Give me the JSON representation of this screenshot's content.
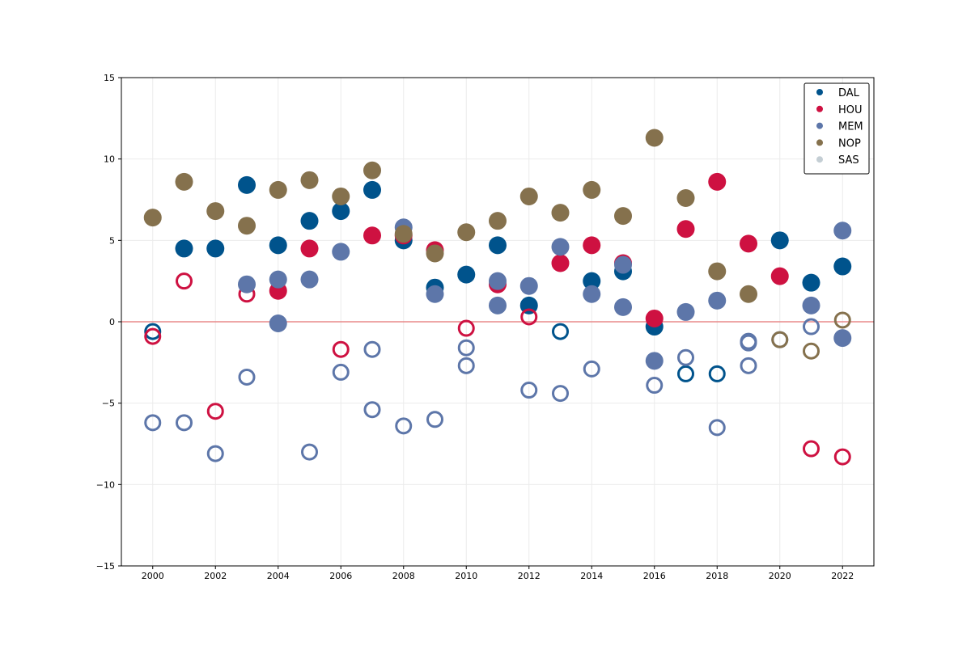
{
  "chart_data": {
    "type": "scatter",
    "title": "",
    "xlabel": "",
    "ylabel": "",
    "xlim": [
      1999,
      2023
    ],
    "ylim": [
      -15,
      15
    ],
    "xticks": [
      2000,
      2002,
      2004,
      2006,
      2008,
      2010,
      2012,
      2014,
      2016,
      2018,
      2020,
      2022
    ],
    "yticks": [
      -15,
      -10,
      -5,
      0,
      5,
      10,
      15
    ],
    "ytick_labels": [
      "−15",
      "−10",
      "−5",
      "0",
      "5",
      "10",
      "15"
    ],
    "grid": true,
    "reference_line": {
      "y": 0,
      "color": "#e88a8a"
    },
    "legend_position": "top-right",
    "marker_styles": {
      "filled": "solid circle",
      "hollow": "open ring"
    },
    "series": [
      {
        "name": "DAL",
        "color": "#00538C",
        "filled": [
          [
            2001,
            4.5
          ],
          [
            2002,
            4.5
          ],
          [
            2003,
            8.4
          ],
          [
            2004,
            4.7
          ],
          [
            2005,
            6.2
          ],
          [
            2006,
            6.8
          ],
          [
            2007,
            8.1
          ],
          [
            2008,
            5.0
          ],
          [
            2009,
            2.1
          ],
          [
            2010,
            2.9
          ],
          [
            2011,
            4.7
          ],
          [
            2012,
            1.0
          ],
          [
            2014,
            2.5
          ],
          [
            2015,
            3.1
          ],
          [
            2016,
            -0.3
          ],
          [
            2020,
            5.0
          ],
          [
            2021,
            2.4
          ],
          [
            2022,
            3.4
          ]
        ],
        "hollow": [
          [
            2000,
            -0.6
          ],
          [
            2013,
            -0.6
          ],
          [
            2017,
            -3.2
          ],
          [
            2018,
            -3.2
          ]
        ]
      },
      {
        "name": "HOU",
        "color": "#CE1141",
        "filled": [
          [
            2004,
            1.9
          ],
          [
            2005,
            4.5
          ],
          [
            2007,
            5.3
          ],
          [
            2008,
            5.3
          ],
          [
            2009,
            4.4
          ],
          [
            2011,
            2.3
          ],
          [
            2013,
            3.6
          ],
          [
            2014,
            4.7
          ],
          [
            2015,
            3.6
          ],
          [
            2016,
            0.2
          ],
          [
            2017,
            5.7
          ],
          [
            2018,
            8.6
          ],
          [
            2019,
            4.8
          ],
          [
            2020,
            2.8
          ]
        ],
        "hollow": [
          [
            2000,
            -0.9
          ],
          [
            2001,
            2.5
          ],
          [
            2002,
            -5.5
          ],
          [
            2003,
            1.7
          ],
          [
            2006,
            -1.7
          ],
          [
            2010,
            -0.4
          ],
          [
            2012,
            0.3
          ],
          [
            2021,
            -7.8
          ],
          [
            2022,
            -8.3
          ]
        ]
      },
      {
        "name": "MEM",
        "color": "#5D76A9",
        "filled": [
          [
            2003,
            2.3
          ],
          [
            2004,
            2.6
          ],
          [
            2004,
            -0.1
          ],
          [
            2005,
            2.6
          ],
          [
            2006,
            4.3
          ],
          [
            2008,
            5.8
          ],
          [
            2009,
            1.7
          ],
          [
            2011,
            2.5
          ],
          [
            2011,
            1.0
          ],
          [
            2012,
            2.2
          ],
          [
            2013,
            4.6
          ],
          [
            2014,
            1.7
          ],
          [
            2015,
            3.5
          ],
          [
            2015,
            0.9
          ],
          [
            2016,
            -2.4
          ],
          [
            2017,
            0.6
          ],
          [
            2018,
            1.3
          ],
          [
            2021,
            1.0
          ],
          [
            2022,
            5.6
          ],
          [
            2022,
            -1.0
          ]
        ],
        "hollow": [
          [
            2000,
            -6.2
          ],
          [
            2001,
            -6.2
          ],
          [
            2002,
            -8.1
          ],
          [
            2003,
            -3.4
          ],
          [
            2005,
            -8.0
          ],
          [
            2006,
            -3.1
          ],
          [
            2007,
            -1.7
          ],
          [
            2007,
            -5.4
          ],
          [
            2008,
            -6.4
          ],
          [
            2009,
            -6.0
          ],
          [
            2010,
            -1.6
          ],
          [
            2010,
            -2.7
          ],
          [
            2012,
            -4.2
          ],
          [
            2013,
            -4.4
          ],
          [
            2014,
            -2.9
          ],
          [
            2016,
            -3.9
          ],
          [
            2017,
            -2.2
          ],
          [
            2018,
            -6.5
          ],
          [
            2019,
            -1.2
          ],
          [
            2019,
            -1.3
          ],
          [
            2019,
            -2.7
          ],
          [
            2020,
            -1.1
          ],
          [
            2021,
            -0.3
          ]
        ]
      },
      {
        "name": "NOP",
        "color": "#85714D",
        "filled": [
          [
            2000,
            6.4
          ],
          [
            2001,
            8.6
          ],
          [
            2002,
            6.8
          ],
          [
            2003,
            5.9
          ],
          [
            2004,
            8.1
          ],
          [
            2005,
            8.7
          ],
          [
            2006,
            7.7
          ],
          [
            2007,
            9.3
          ],
          [
            2008,
            5.4
          ],
          [
            2009,
            4.2
          ],
          [
            2010,
            5.5
          ],
          [
            2011,
            6.2
          ],
          [
            2012,
            7.7
          ],
          [
            2013,
            6.7
          ],
          [
            2014,
            8.1
          ],
          [
            2015,
            6.5
          ],
          [
            2016,
            11.3
          ],
          [
            2017,
            7.6
          ],
          [
            2018,
            3.1
          ],
          [
            2019,
            1.7
          ]
        ],
        "hollow": [
          [
            2020,
            -1.1
          ],
          [
            2021,
            -1.8
          ],
          [
            2022,
            0.1
          ]
        ]
      },
      {
        "name": "SAS",
        "color": "#C4CED4",
        "filled": [],
        "hollow": []
      }
    ]
  }
}
